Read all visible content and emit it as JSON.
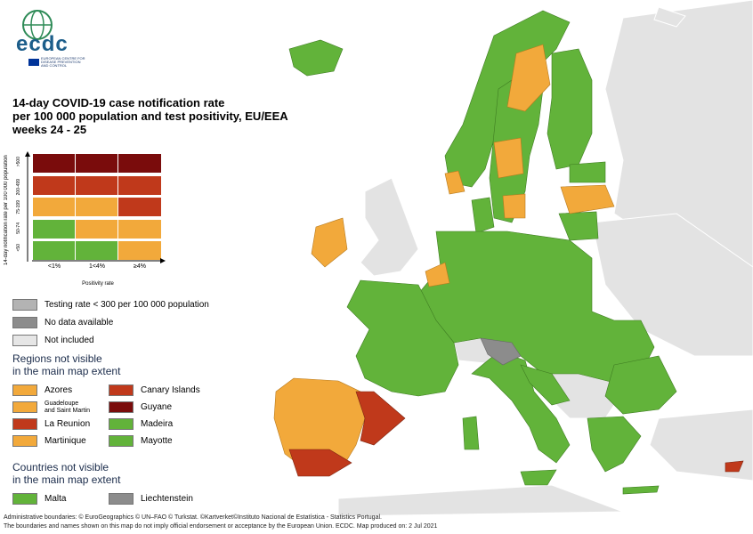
{
  "logo": {
    "text": "ecdc",
    "subtitle": "EUROPEAN CENTRE FOR DISEASE PREVENTION AND CONTROL"
  },
  "title": [
    "14-day COVID-19 case notification rate",
    "per 100 000 population and test positivity, EU/EEA",
    "weeks 24 - 25"
  ],
  "matrix": {
    "ylabel": "14-day notification rate per 100 000 population",
    "yticks": [
      ">500",
      "200-499",
      "75-199",
      "50-74",
      "<50"
    ],
    "xlabel": "Positivity rate",
    "xticks": [
      "<1%",
      "1<4%",
      "≥4%"
    ],
    "rows": [
      [
        "#7a0c0c",
        "#7a0c0c",
        "#7a0c0c"
      ],
      [
        "#c0391b",
        "#c0391b",
        "#c0391b"
      ],
      [
        "#f2a93b",
        "#f2a93b",
        "#c0391b"
      ],
      [
        "#62b33a",
        "#f2a93b",
        "#f2a93b"
      ],
      [
        "#62b33a",
        "#62b33a",
        "#f2a93b"
      ]
    ]
  },
  "legend_other": [
    {
      "label": "Testing rate < 300 per 100 000 population",
      "color": "#b3b3b3"
    },
    {
      "label": "No data available",
      "color": "#8c8c8c"
    },
    {
      "label": "Not included",
      "color": "#e6e6e6"
    }
  ],
  "regions_heading": "Regions not visible\nin the main map extent",
  "regions_left": [
    {
      "label": "Azores",
      "color": "#f2a93b"
    },
    {
      "label": "Guadeloupe\nand Saint Martin",
      "color": "#f2a93b",
      "small": true
    },
    {
      "label": "La Reunion",
      "color": "#c0391b"
    },
    {
      "label": "Martinique",
      "color": "#f2a93b"
    }
  ],
  "regions_right": [
    {
      "label": "Canary Islands",
      "color": "#c0391b"
    },
    {
      "label": "Guyane",
      "color": "#7a0c0c"
    },
    {
      "label": "Madeira",
      "color": "#62b33a"
    },
    {
      "label": "Mayotte",
      "color": "#62b33a"
    }
  ],
  "countries_heading": "Countries not visible\nin the main map extent",
  "countries": [
    {
      "label": "Malta",
      "color": "#62b33a"
    },
    {
      "label": "Liechtenstein",
      "color": "#8c8c8c"
    }
  ],
  "footer": [
    "Administrative boundaries: © EuroGeographics © UN–FAO © Turkstat. ©Kartverket©Instituto Nacional de Estatística - Statistics Portugal.",
    "The boundaries and names shown on this map do not imply official endorsement or acceptance by the European Union. ECDC. Map produced on: 2 Jul 2021"
  ],
  "colors": {
    "green": "#62b33a",
    "orange": "#f2a93b",
    "red": "#c0391b",
    "darkred": "#7a0c0c",
    "grey": "#8c8c8c",
    "lightgrey": "#e6e6e6",
    "testgrey": "#b3b3b3"
  }
}
